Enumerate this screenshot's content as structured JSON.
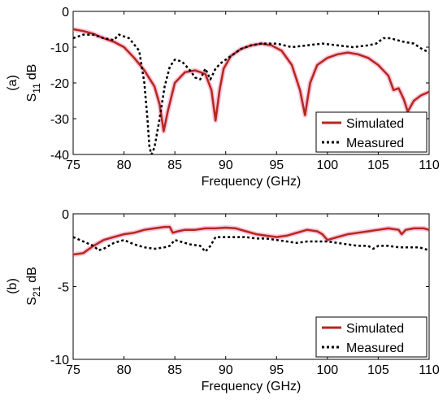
{
  "colors": {
    "simulated": "#b8271c",
    "simulated_glow": "#f2a0c8",
    "measured": "#000000"
  },
  "chart_data": [
    {
      "type": "line",
      "panel_label": "(a)",
      "ylabel_main": "S",
      "ylabel_sub": "11",
      "ylabel_unit": "dB",
      "xlabel": "Frequency (GHz)",
      "xlim": [
        75,
        110
      ],
      "ylim": [
        -40,
        0
      ],
      "xticks": [
        "75",
        "80",
        "85",
        "90",
        "95",
        "100",
        "105",
        "110"
      ],
      "yticks": [
        "0",
        "-10",
        "-20",
        "-30",
        "-40"
      ],
      "grid": false,
      "legend_position": "bottom-right",
      "series": [
        {
          "name": "Simulated",
          "style": "solid",
          "x": [
            75,
            76,
            77,
            78,
            79,
            80,
            81,
            82,
            83,
            83.5,
            83.9,
            84.3,
            85,
            86,
            87,
            88,
            88.6,
            89,
            89.4,
            89.8,
            90.5,
            91.5,
            92.5,
            93.5,
            94.5,
            95.5,
            96.5,
            97.3,
            97.8,
            98.3,
            99,
            100,
            101,
            102,
            103,
            104,
            105,
            106,
            106.5,
            107,
            107.5,
            107.9,
            108.5,
            109.2,
            110
          ],
          "y": [
            -5,
            -5.5,
            -6.3,
            -7.5,
            -8.5,
            -10,
            -13,
            -16.5,
            -21,
            -26,
            -33.5,
            -28,
            -20,
            -17,
            -16.5,
            -17.5,
            -22,
            -30.5,
            -22,
            -16,
            -12.5,
            -10.5,
            -9.5,
            -9,
            -9.5,
            -11,
            -15,
            -22,
            -29,
            -20,
            -15,
            -13,
            -12,
            -11.5,
            -12,
            -13,
            -15,
            -18,
            -22,
            -21.5,
            -24.5,
            -28,
            -25,
            -23.5,
            -22.5
          ]
        },
        {
          "name": "Measured",
          "style": "dotted",
          "x": [
            75,
            76,
            77,
            78,
            79,
            79.5,
            80.5,
            81.5,
            82,
            82.3,
            82.5,
            82.7,
            83,
            83.5,
            84,
            84.5,
            85,
            85.7,
            86.5,
            87,
            87.5,
            88,
            88.5,
            89,
            89.5,
            90.5,
            91.5,
            92.5,
            93.5,
            95,
            96.5,
            98,
            99.5,
            101,
            102.5,
            104,
            104.8,
            105.5,
            106.2,
            106.8,
            107.5,
            108.5,
            109.3,
            110
          ],
          "y": [
            -7.5,
            -6.5,
            -6.5,
            -7.5,
            -8,
            -6.5,
            -7.5,
            -11,
            -20,
            -30,
            -38,
            -40,
            -38,
            -30,
            -21,
            -15.5,
            -13.5,
            -14,
            -16.5,
            -18.5,
            -19,
            -16,
            -19,
            -16,
            -14.5,
            -12.5,
            -10.5,
            -9.5,
            -9,
            -9,
            -10,
            -9.5,
            -9,
            -9.5,
            -10,
            -9.5,
            -9,
            -7.5,
            -7.5,
            -8,
            -8.5,
            -9,
            -10.5,
            -11.5
          ]
        }
      ]
    },
    {
      "type": "line",
      "panel_label": "(b)",
      "ylabel_main": "S",
      "ylabel_sub": "21",
      "ylabel_unit": "dB",
      "xlabel": "Frequency (GHz)",
      "xlim": [
        75,
        110
      ],
      "ylim": [
        -10,
        0
      ],
      "xticks": [
        "75",
        "80",
        "85",
        "90",
        "95",
        "100",
        "105",
        "110"
      ],
      "yticks": [
        "0",
        "-5",
        "-10"
      ],
      "grid": false,
      "legend_position": "bottom-right",
      "series": [
        {
          "name": "Simulated",
          "style": "solid",
          "x": [
            75,
            76,
            77,
            78,
            79,
            80,
            81,
            82,
            83,
            84,
            84.5,
            84.8,
            85.3,
            86,
            87,
            88,
            89,
            90,
            91,
            92,
            93,
            94,
            95,
            96,
            97,
            98,
            99,
            99.5,
            100,
            101,
            102,
            103,
            104,
            105,
            106,
            107,
            107.3,
            107.7,
            108.5,
            109.5,
            110
          ],
          "y": [
            -2.8,
            -2.7,
            -2.2,
            -1.8,
            -1.6,
            -1.4,
            -1.3,
            -1.1,
            -1.0,
            -0.9,
            -0.9,
            -1.3,
            -1.2,
            -1.1,
            -1.1,
            -1.0,
            -1.0,
            -0.95,
            -1.0,
            -1.2,
            -1.4,
            -1.5,
            -1.6,
            -1.5,
            -1.3,
            -1.1,
            -1.2,
            -1.4,
            -1.8,
            -1.6,
            -1.4,
            -1.3,
            -1.2,
            -1.1,
            -1.0,
            -1.1,
            -1.4,
            -1.1,
            -1.0,
            -1.0,
            -1.1
          ]
        },
        {
          "name": "Measured",
          "style": "dotted",
          "x": [
            75,
            76,
            77,
            77.5,
            78,
            79,
            80,
            81,
            82,
            83,
            84,
            84.5,
            85,
            85.5,
            86.5,
            87.5,
            88,
            88.5,
            89,
            90,
            91,
            92,
            93,
            94,
            95,
            96,
            97,
            98,
            99,
            100,
            101,
            102,
            103,
            104,
            104.5,
            105,
            106,
            107,
            108,
            109,
            110
          ],
          "y": [
            -1.6,
            -1.9,
            -2.2,
            -2.5,
            -2.4,
            -2.0,
            -1.8,
            -2.1,
            -2.3,
            -2.4,
            -2.3,
            -2.2,
            -1.8,
            -1.9,
            -2.1,
            -2.2,
            -2.6,
            -2.2,
            -1.6,
            -1.6,
            -1.6,
            -1.6,
            -1.7,
            -1.7,
            -1.8,
            -1.9,
            -2.0,
            -1.9,
            -1.9,
            -1.9,
            -2.0,
            -2.1,
            -2.2,
            -2.2,
            -2.4,
            -2.2,
            -2.2,
            -2.3,
            -2.3,
            -2.3,
            -2.5
          ]
        }
      ]
    }
  ]
}
